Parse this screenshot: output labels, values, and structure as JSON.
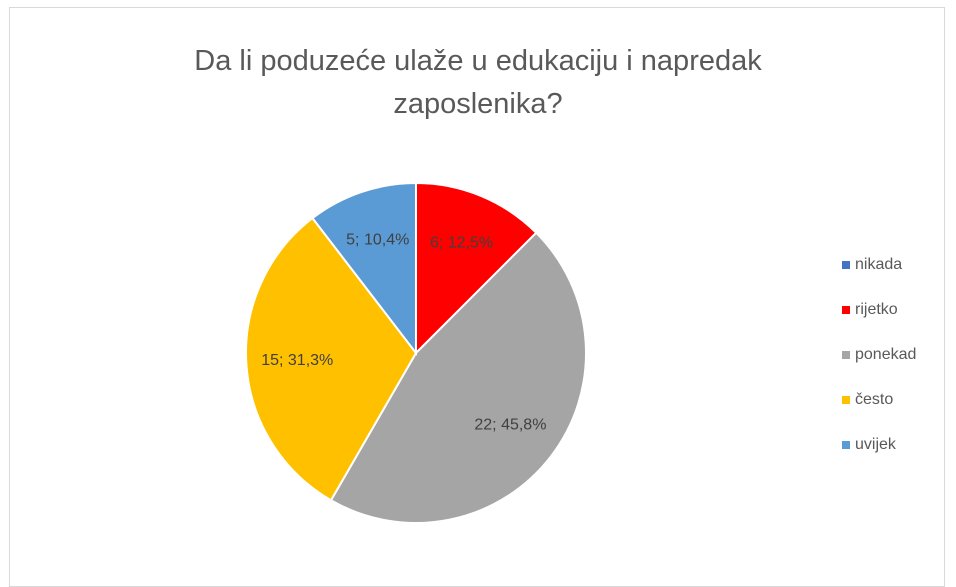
{
  "chart_data": {
    "type": "pie",
    "title": "Da li poduzeće ulaže u edukaciju i napredak zaposlenika?",
    "categories": [
      "nikada",
      "rijetko",
      "ponekad",
      "često",
      "uvijek"
    ],
    "values": [
      0,
      6,
      22,
      15,
      5
    ],
    "value_labels": [
      null,
      "6; 12,5%",
      "22; 45,8%",
      "15; 31,3%",
      "5; 10,4%"
    ],
    "colors": [
      "#4472c4",
      "#ff0000",
      "#a5a5a5",
      "#ffc000",
      "#5b9bd5"
    ],
    "legend": "right"
  }
}
